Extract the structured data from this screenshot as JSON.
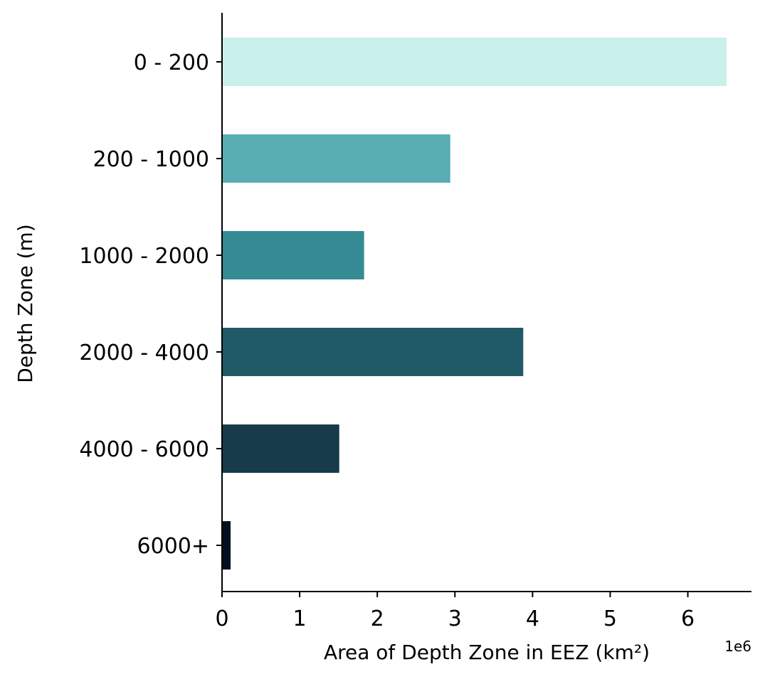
{
  "chart_data": {
    "type": "bar",
    "orientation": "horizontal",
    "title": "",
    "xlabel": "Area of Depth Zone in EEZ (km²)",
    "ylabel": "Depth Zone (m)",
    "x_offset_label": "1e6",
    "categories": [
      "0 - 200",
      "200 - 1000",
      "1000 - 2000",
      "2000 - 4000",
      "4000 - 6000",
      "6000+"
    ],
    "values": [
      6500000,
      2940000,
      1830000,
      3880000,
      1510000,
      110000
    ],
    "colors": [
      "#caf0ec",
      "#58aeb2",
      "#358b94",
      "#205a66",
      "#163c4c",
      "#030f1f"
    ],
    "xlim": [
      0,
      6820000
    ],
    "xticks": [
      0,
      1000000,
      2000000,
      3000000,
      4000000,
      5000000,
      6000000
    ],
    "xtick_labels": [
      "0",
      "1",
      "2",
      "3",
      "4",
      "5",
      "6"
    ],
    "grid": false,
    "legend": "none"
  }
}
